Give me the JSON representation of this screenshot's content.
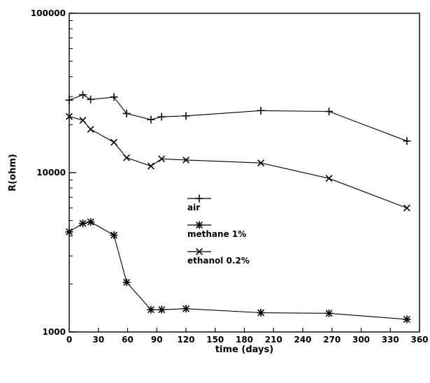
{
  "chart_data": {
    "type": "line",
    "title": "",
    "xlabel": "time (days)",
    "ylabel": "R(ohm)",
    "xlim": [
      0,
      360
    ],
    "ylim": [
      1000,
      100000
    ],
    "yscale": "log",
    "grid": false,
    "legend_position": "center",
    "x_ticks": [
      "0",
      "30",
      "60",
      "90",
      "120",
      "150",
      "180",
      "210",
      "240",
      "270",
      "300",
      "330",
      "360"
    ],
    "y_ticks": [
      "1000",
      "10000",
      "100000"
    ],
    "series": [
      {
        "name": "air",
        "marker": "plus",
        "x": [
          0,
          14,
          22,
          46,
          59,
          84,
          95,
          120,
          197,
          267,
          347
        ],
        "y": [
          28500,
          30800,
          28800,
          29800,
          23500,
          21500,
          22400,
          22700,
          24500,
          24200,
          15800
        ]
      },
      {
        "name": "methane 1%",
        "marker": "asterisk",
        "x": [
          0,
          14,
          22,
          46,
          59,
          84,
          95,
          120,
          197,
          267,
          347
        ],
        "y": [
          4250,
          4800,
          4900,
          4050,
          2050,
          1380,
          1380,
          1400,
          1320,
          1310,
          1200
        ]
      },
      {
        "name": "ethanol 0.2%",
        "marker": "cross",
        "x": [
          0,
          14,
          22,
          46,
          59,
          84,
          95,
          120,
          197,
          267,
          347
        ],
        "y": [
          22500,
          21300,
          18700,
          15500,
          12400,
          11000,
          12200,
          12000,
          11500,
          9200,
          6000
        ]
      }
    ]
  }
}
